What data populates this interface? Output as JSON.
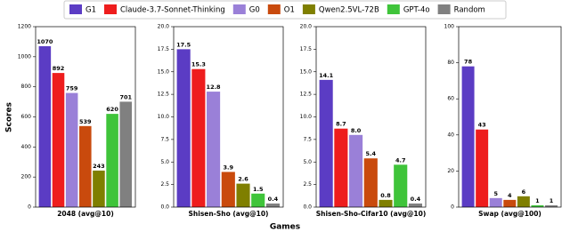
{
  "legend": [
    {
      "name": "G1",
      "color": "#5b3cc4"
    },
    {
      "name": "Claude-3.7-Sonnet-Thinking",
      "color": "#ee1d1d"
    },
    {
      "name": "G0",
      "color": "#9a80d8"
    },
    {
      "name": "O1",
      "color": "#c94a0d"
    },
    {
      "name": "Qwen2.5VL-72B",
      "color": "#7f7f00"
    },
    {
      "name": "GPT-4o",
      "color": "#3fc43a"
    },
    {
      "name": "Random",
      "color": "#808080"
    }
  ],
  "ylabel": "Scores",
  "xlabel": "Games",
  "chart_data": [
    {
      "type": "bar",
      "xlabel": "2048 (avg@10)",
      "values": [
        1070,
        892,
        759,
        539,
        243,
        620,
        701
      ],
      "ylim": [
        0,
        1200
      ],
      "yticks": [
        0,
        200,
        400,
        600,
        800,
        1000,
        1200
      ]
    },
    {
      "type": "bar",
      "xlabel": "Shisen-Sho (avg@10)",
      "values": [
        17.5,
        15.3,
        12.8,
        3.9,
        2.6,
        1.5,
        0.4
      ],
      "ylim": [
        0,
        20
      ],
      "yticks": [
        {
          "value": 0,
          "label": "0.0"
        },
        2.5,
        {
          "value": 5,
          "label": "5.0"
        },
        7.5,
        {
          "value": 10,
          "label": "10.0"
        },
        12.5,
        {
          "value": 15,
          "label": "15.0"
        },
        17.5,
        {
          "value": 20,
          "label": "20.0"
        }
      ]
    },
    {
      "type": "bar",
      "xlabel": "Shisen-Sho-Cifar10 (avg@10)",
      "values": [
        14.1,
        8.7,
        8.0,
        5.4,
        0.8,
        4.7,
        0.4
      ],
      "value_labels": [
        "14.1",
        "8.7",
        "8.0",
        "5.4",
        "0.8",
        "4.7",
        "0.4"
      ],
      "ylim": [
        0,
        20
      ],
      "yticks": [
        {
          "value": 0,
          "label": "0.0"
        },
        2.5,
        {
          "value": 5,
          "label": "5.0"
        },
        7.5,
        {
          "value": 10,
          "label": "10.0"
        },
        12.5,
        {
          "value": 15,
          "label": "15.0"
        },
        17.5,
        {
          "value": 20,
          "label": "20.0"
        }
      ]
    },
    {
      "type": "bar",
      "xlabel": "Swap (avg@100)",
      "values": [
        78,
        43,
        5,
        4,
        6,
        1,
        1
      ],
      "ylim": [
        0,
        100
      ],
      "yticks": [
        0,
        20,
        40,
        60,
        80,
        100
      ]
    }
  ]
}
